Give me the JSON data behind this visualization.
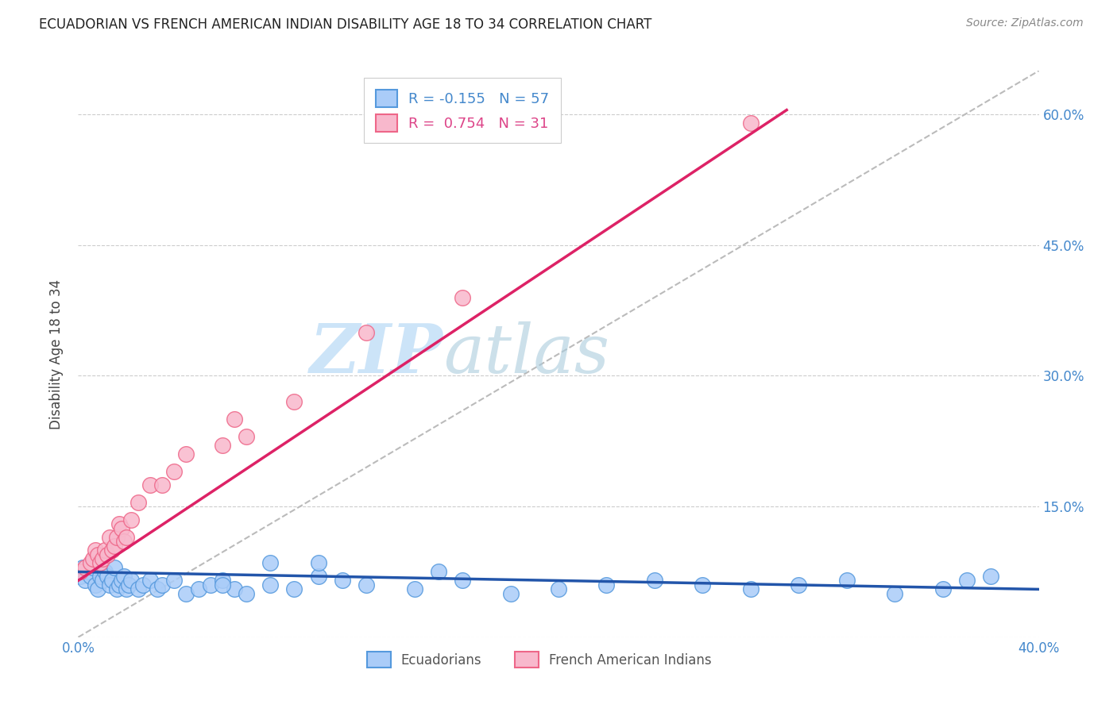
{
  "title": "ECUADORIAN VS FRENCH AMERICAN INDIAN DISABILITY AGE 18 TO 34 CORRELATION CHART",
  "source": "Source: ZipAtlas.com",
  "ylabel": "Disability Age 18 to 34",
  "xlim": [
    0.0,
    0.4
  ],
  "ylim": [
    0.0,
    0.65
  ],
  "xticks": [
    0.0,
    0.1,
    0.2,
    0.3,
    0.4
  ],
  "xticklabels": [
    "0.0%",
    "",
    "",
    "",
    "40.0%"
  ],
  "yticks": [
    0.0,
    0.15,
    0.3,
    0.45,
    0.6
  ],
  "yticklabels_right": [
    "",
    "15.0%",
    "30.0%",
    "45.0%",
    "60.0%"
  ],
  "blue_R": -0.155,
  "blue_N": 57,
  "pink_R": 0.754,
  "pink_N": 31,
  "blue_fill": "#aaccf8",
  "blue_edge": "#5599dd",
  "pink_fill": "#f8b8cc",
  "pink_edge": "#ee6688",
  "blue_line_color": "#2255aa",
  "pink_line_color": "#dd2266",
  "gray_dash_color": "#bbbbbb",
  "watermark_color": "#cce4f8",
  "legend_labels": [
    "Ecuadorians",
    "French American Indians"
  ],
  "blue_scatter_x": [
    0.001,
    0.002,
    0.003,
    0.004,
    0.005,
    0.006,
    0.007,
    0.008,
    0.009,
    0.01,
    0.011,
    0.012,
    0.013,
    0.014,
    0.015,
    0.016,
    0.017,
    0.018,
    0.019,
    0.02,
    0.021,
    0.022,
    0.025,
    0.027,
    0.03,
    0.033,
    0.035,
    0.04,
    0.045,
    0.05,
    0.055,
    0.06,
    0.065,
    0.07,
    0.08,
    0.09,
    0.1,
    0.11,
    0.12,
    0.14,
    0.16,
    0.18,
    0.2,
    0.22,
    0.24,
    0.26,
    0.28,
    0.3,
    0.32,
    0.34,
    0.36,
    0.37,
    0.38,
    0.1,
    0.15,
    0.08,
    0.06
  ],
  "blue_scatter_y": [
    0.07,
    0.08,
    0.065,
    0.075,
    0.07,
    0.08,
    0.06,
    0.055,
    0.07,
    0.065,
    0.075,
    0.07,
    0.06,
    0.065,
    0.08,
    0.055,
    0.06,
    0.065,
    0.07,
    0.055,
    0.06,
    0.065,
    0.055,
    0.06,
    0.065,
    0.055,
    0.06,
    0.065,
    0.05,
    0.055,
    0.06,
    0.065,
    0.055,
    0.05,
    0.06,
    0.055,
    0.07,
    0.065,
    0.06,
    0.055,
    0.065,
    0.05,
    0.055,
    0.06,
    0.065,
    0.06,
    0.055,
    0.06,
    0.065,
    0.05,
    0.055,
    0.065,
    0.07,
    0.085,
    0.075,
    0.085,
    0.06
  ],
  "pink_scatter_x": [
    0.001,
    0.003,
    0.005,
    0.006,
    0.007,
    0.008,
    0.009,
    0.01,
    0.011,
    0.012,
    0.013,
    0.014,
    0.015,
    0.016,
    0.017,
    0.018,
    0.019,
    0.02,
    0.022,
    0.025,
    0.03,
    0.035,
    0.04,
    0.045,
    0.06,
    0.065,
    0.07,
    0.09,
    0.12,
    0.16,
    0.28
  ],
  "pink_scatter_y": [
    0.075,
    0.08,
    0.085,
    0.09,
    0.1,
    0.095,
    0.085,
    0.09,
    0.1,
    0.095,
    0.115,
    0.1,
    0.105,
    0.115,
    0.13,
    0.125,
    0.11,
    0.115,
    0.135,
    0.155,
    0.175,
    0.175,
    0.19,
    0.21,
    0.22,
    0.25,
    0.23,
    0.27,
    0.35,
    0.39,
    0.59
  ],
  "blue_line_x": [
    0.0,
    0.4
  ],
  "blue_line_y": [
    0.075,
    0.055
  ],
  "pink_line_x": [
    0.0,
    0.295
  ],
  "pink_line_y": [
    0.065,
    0.605
  ],
  "gray_line_x": [
    0.0,
    0.4
  ],
  "gray_line_y": [
    0.0,
    0.65
  ]
}
